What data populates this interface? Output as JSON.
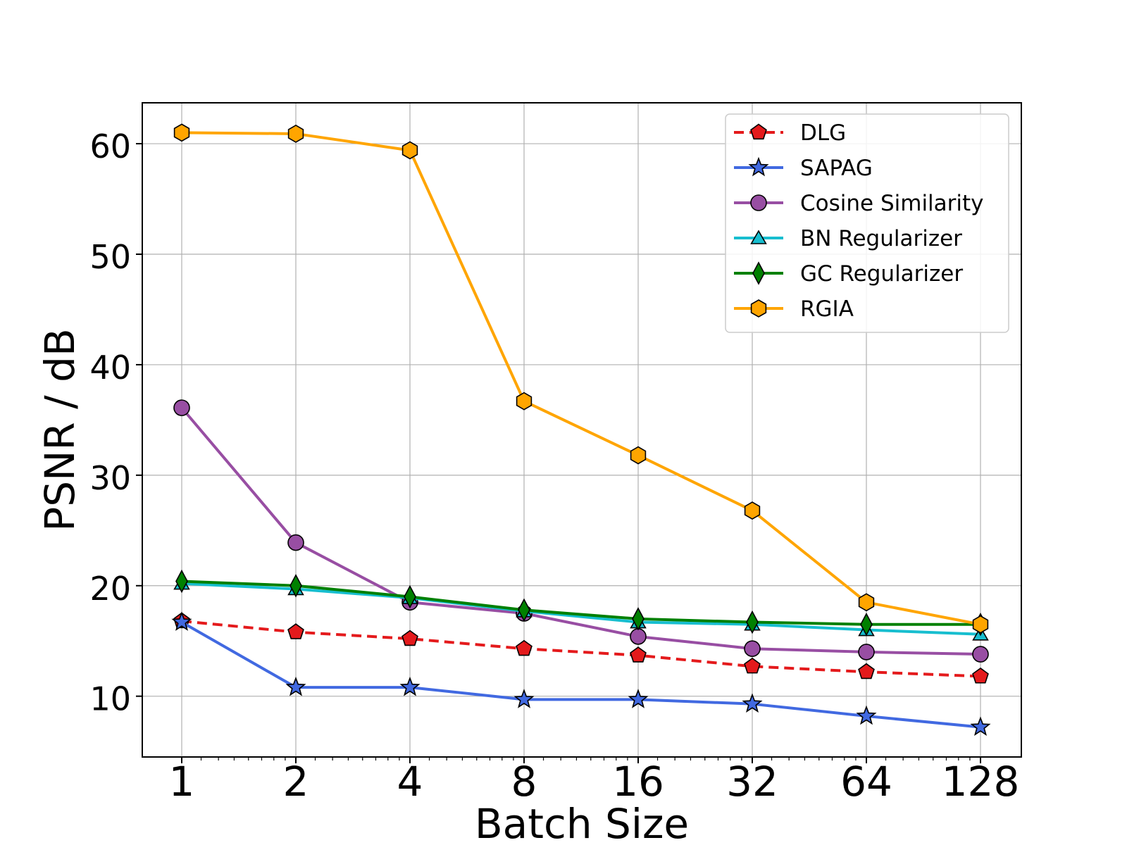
{
  "chart_data": {
    "type": "line",
    "title": "",
    "xlabel": "Batch Size",
    "ylabel": "PSNR / dB",
    "x_scale": "log2",
    "categories": [
      "1",
      "2",
      "4",
      "8",
      "16",
      "32",
      "64",
      "128"
    ],
    "x": [
      1,
      2,
      4,
      8,
      16,
      32,
      64,
      128
    ],
    "y_ticks": [
      "10",
      "20",
      "30",
      "40",
      "50",
      "60"
    ],
    "ylim": [
      4.5,
      63.7
    ],
    "grid": true,
    "legend_position": "top-right",
    "series": [
      {
        "name": "DLG",
        "color": "#e41a1c",
        "dashed": true,
        "marker": "pentagon",
        "values": [
          16.8,
          15.8,
          15.2,
          14.3,
          13.7,
          12.7,
          12.2,
          11.8
        ]
      },
      {
        "name": "SAPAG",
        "color": "#4169e1",
        "dashed": false,
        "marker": "star",
        "values": [
          16.7,
          10.8,
          10.8,
          9.7,
          9.7,
          9.3,
          8.2,
          7.2
        ]
      },
      {
        "name": "Cosine Similarity",
        "color": "#984ea3",
        "dashed": false,
        "marker": "circle",
        "values": [
          36.1,
          23.9,
          18.5,
          17.5,
          15.4,
          14.3,
          14.0,
          13.8
        ]
      },
      {
        "name": "BN Regularizer",
        "color": "#17becf",
        "dashed": false,
        "marker": "triangle",
        "values": [
          20.2,
          19.7,
          18.9,
          17.7,
          16.7,
          16.5,
          16.0,
          15.6
        ]
      },
      {
        "name": "GC Regularizer",
        "color": "#008000",
        "dashed": false,
        "marker": "diamond",
        "values": [
          20.4,
          20.0,
          19.0,
          17.8,
          17.0,
          16.7,
          16.5,
          16.5
        ]
      },
      {
        "name": "RGIA",
        "color": "#ffa500",
        "dashed": false,
        "marker": "hexagon",
        "values": [
          61.0,
          60.9,
          59.4,
          36.7,
          31.8,
          26.8,
          18.5,
          16.5
        ]
      }
    ]
  }
}
